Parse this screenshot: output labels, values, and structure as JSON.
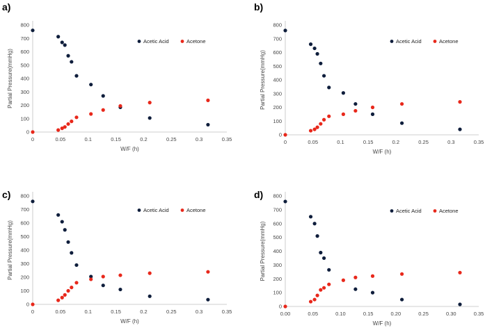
{
  "colors": {
    "acetic": "#0f1e3c",
    "acetone": "#e8281b",
    "axis": "#bfbfbf"
  },
  "chart_data": [
    {
      "panel": "a)",
      "type": "scatter",
      "xlabel": "W/F (h)",
      "ylabel": "Partial Pressure(mmHg)",
      "xlim": [
        0,
        0.35
      ],
      "ylim": [
        0,
        800
      ],
      "xticks": [
        "0",
        "0.05",
        "0.1",
        "0.15",
        "0.2",
        "0.25",
        "0.3",
        "0.35"
      ],
      "yticks": [
        "0",
        "100",
        "200",
        "300",
        "400",
        "500",
        "600",
        "700",
        "800"
      ],
      "legend": [
        "Acetic Acid",
        "Acetone"
      ],
      "series": [
        {
          "name": "Acetic Acid",
          "x": [
            0,
            0.046,
            0.053,
            0.058,
            0.064,
            0.07,
            0.079,
            0.105,
            0.127,
            0.158,
            0.211,
            0.316
          ],
          "y": [
            760,
            713,
            670,
            650,
            570,
            525,
            420,
            355,
            270,
            185,
            105,
            55
          ]
        },
        {
          "name": "Acetone",
          "x": [
            0,
            0.046,
            0.053,
            0.058,
            0.064,
            0.07,
            0.079,
            0.105,
            0.127,
            0.158,
            0.211,
            0.316
          ],
          "y": [
            0,
            15,
            28,
            38,
            60,
            80,
            110,
            135,
            165,
            195,
            220,
            237
          ]
        }
      ]
    },
    {
      "panel": "b)",
      "type": "scatter",
      "xlabel": "W/F (h)",
      "ylabel": "Partial Pressure(mmHg)",
      "xlim": [
        0,
        0.35
      ],
      "ylim": [
        0,
        800
      ],
      "xticks": [
        "0",
        "0.05",
        "0.1",
        "0.15",
        "0.2",
        "0.25",
        "0.3",
        "0.35"
      ],
      "yticks": [
        "0",
        "100",
        "200",
        "300",
        "400",
        "500",
        "600",
        "700",
        "800"
      ],
      "legend": [
        "Acetic Acid",
        "Acetone"
      ],
      "series": [
        {
          "name": "Acetic Acid",
          "x": [
            0,
            0.046,
            0.053,
            0.058,
            0.064,
            0.07,
            0.079,
            0.105,
            0.127,
            0.158,
            0.211,
            0.316
          ],
          "y": [
            760,
            660,
            630,
            590,
            520,
            430,
            345,
            305,
            225,
            150,
            85,
            40
          ]
        },
        {
          "name": "Acetone",
          "x": [
            0,
            0.046,
            0.053,
            0.058,
            0.064,
            0.07,
            0.079,
            0.105,
            0.127,
            0.158,
            0.211,
            0.316
          ],
          "y": [
            0,
            30,
            40,
            55,
            80,
            110,
            135,
            150,
            175,
            200,
            225,
            240
          ]
        }
      ]
    },
    {
      "panel": "c)",
      "type": "scatter",
      "xlabel": "W/F (h)",
      "ylabel": "Partial Pressure(mmHg)",
      "xlim": [
        0,
        0.35
      ],
      "ylim": [
        0,
        800
      ],
      "xticks": [
        "0",
        "0.05",
        "0.1",
        "0.15",
        "0.2",
        "0.25",
        "0.3",
        "0.35"
      ],
      "yticks": [
        "0",
        "100",
        "200",
        "300",
        "400",
        "500",
        "600",
        "700",
        "800"
      ],
      "legend": [
        "Acetic Acid",
        "Acetone"
      ],
      "series": [
        {
          "name": "Acetic Acid",
          "x": [
            0,
            0.046,
            0.053,
            0.058,
            0.064,
            0.07,
            0.079,
            0.105,
            0.127,
            0.158,
            0.211,
            0.316
          ],
          "y": [
            760,
            660,
            610,
            550,
            460,
            380,
            290,
            205,
            140,
            110,
            60,
            35
          ]
        },
        {
          "name": "Acetone",
          "x": [
            0,
            0.046,
            0.053,
            0.058,
            0.064,
            0.07,
            0.079,
            0.105,
            0.127,
            0.158,
            0.211,
            0.316
          ],
          "y": [
            0,
            30,
            50,
            70,
            100,
            125,
            160,
            185,
            205,
            215,
            230,
            240
          ]
        }
      ]
    },
    {
      "panel": "d)",
      "type": "scatter",
      "xlabel": "W/F (h)",
      "ylabel": "Partial Pressure(mmHg)",
      "xlim": [
        0,
        0.35
      ],
      "ylim": [
        0,
        800
      ],
      "xticks": [
        "0.00",
        "0.05",
        "0.10",
        "0.15",
        "0.20",
        "0.25",
        "0.30",
        "0.35"
      ],
      "yticks": [
        "0",
        "100",
        "200",
        "300",
        "400",
        "500",
        "600",
        "700",
        "800"
      ],
      "legend": [
        "Acetic Acid",
        "Acetone"
      ],
      "series": [
        {
          "name": "Acetic Acid",
          "x": [
            0,
            0.046,
            0.053,
            0.058,
            0.064,
            0.07,
            0.079,
            0.127,
            0.158,
            0.211,
            0.316
          ],
          "y": [
            760,
            650,
            600,
            510,
            390,
            350,
            265,
            125,
            100,
            50,
            15
          ]
        },
        {
          "name": "Acetone",
          "x": [
            0,
            0.046,
            0.053,
            0.058,
            0.064,
            0.07,
            0.079,
            0.105,
            0.127,
            0.158,
            0.211,
            0.316
          ],
          "y": [
            0,
            35,
            50,
            80,
            120,
            135,
            160,
            190,
            210,
            220,
            235,
            245
          ]
        }
      ]
    }
  ]
}
